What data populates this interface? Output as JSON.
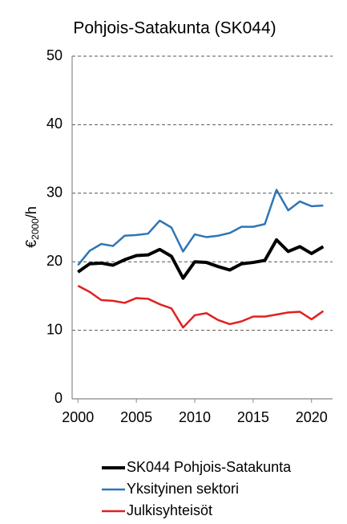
{
  "chart_data": {
    "type": "line",
    "title": "Pohjois-Satakunta (SK044)",
    "y_label": [
      "€",
      "2000",
      "/h"
    ],
    "x": [
      2000,
      2001,
      2002,
      2003,
      2004,
      2005,
      2006,
      2007,
      2008,
      2009,
      2010,
      2011,
      2012,
      2013,
      2014,
      2015,
      2016,
      2017,
      2018,
      2019,
      2020,
      2021
    ],
    "series": [
      {
        "name": "SK044 Pohjois-Satakunta",
        "color": "#000000",
        "values": [
          18.5,
          19.7,
          19.8,
          19.5,
          20.3,
          20.9,
          21.0,
          21.8,
          20.8,
          17.6,
          20.0,
          19.9,
          19.3,
          18.8,
          19.7,
          19.9,
          20.2,
          23.2,
          21.5,
          22.2,
          21.2,
          22.2
        ]
      },
      {
        "name": "Yksityinen sektori",
        "color": "#2e75b6",
        "values": [
          19.5,
          21.6,
          22.6,
          22.3,
          23.8,
          23.9,
          24.1,
          26.0,
          25.0,
          21.5,
          24.0,
          23.6,
          23.8,
          24.2,
          25.1,
          25.1,
          25.5,
          30.5,
          27.5,
          28.8,
          28.1,
          28.2
        ]
      },
      {
        "name": "Julkisyhteisöt",
        "color": "#e02020",
        "values": [
          16.5,
          15.6,
          14.4,
          14.3,
          14.0,
          14.7,
          14.6,
          13.8,
          13.2,
          10.4,
          12.2,
          12.5,
          11.5,
          10.9,
          11.3,
          12.0,
          12.0,
          12.3,
          12.6,
          12.7,
          11.6,
          12.8
        ]
      }
    ],
    "xlim": [
      1999.5,
      2021.8
    ],
    "xticks": [
      2000,
      2005,
      2010,
      2015,
      2020
    ],
    "ylim": [
      0,
      50
    ],
    "yticks": [
      0,
      10,
      20,
      30,
      40,
      50
    ],
    "grid": true
  }
}
